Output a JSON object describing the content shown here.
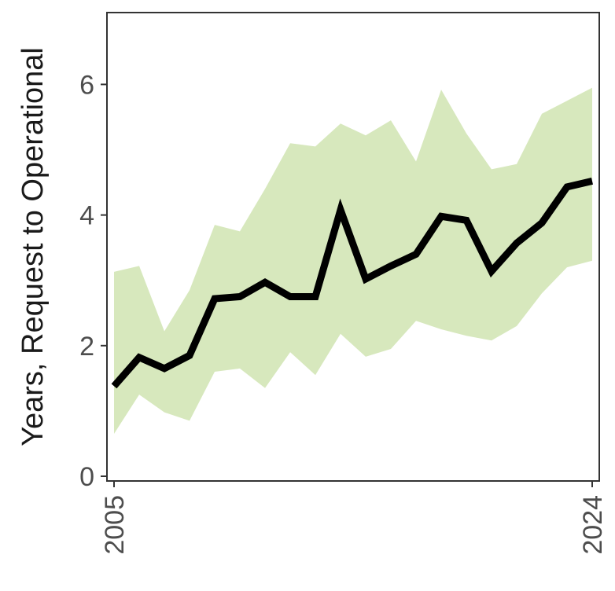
{
  "chart_data": {
    "type": "line",
    "ylabel": "Years, Request to Operational",
    "xlim": [
      2005,
      2024
    ],
    "ylim": [
      0,
      7.1
    ],
    "x_ticks": [
      2005,
      2024
    ],
    "y_ticks": [
      0,
      2,
      4,
      6
    ],
    "grid": false,
    "legend": "none",
    "colors": {
      "line": "#000000",
      "band": "#d7e8bd",
      "frame": "#333333",
      "tick_text": "#4d4d4d"
    },
    "series": [
      {
        "x": [
          2005,
          2006,
          2007,
          2008,
          2009,
          2010,
          2011,
          2012,
          2013,
          2014,
          2015,
          2016,
          2017,
          2018,
          2019,
          2020,
          2021,
          2022,
          2023,
          2024
        ],
        "values": [
          1.38,
          1.82,
          1.65,
          1.85,
          2.72,
          2.75,
          2.97,
          2.75,
          2.75,
          4.08,
          3.02,
          3.22,
          3.4,
          3.98,
          3.92,
          3.14,
          3.57,
          3.88,
          4.43,
          4.52
        ],
        "lower": [
          0.65,
          1.25,
          0.98,
          0.85,
          1.6,
          1.65,
          1.35,
          1.9,
          1.55,
          2.18,
          1.83,
          1.95,
          2.38,
          2.25,
          2.15,
          2.08,
          2.3,
          2.8,
          3.2,
          3.3
        ],
        "upper": [
          3.13,
          3.22,
          2.22,
          2.85,
          3.85,
          3.75,
          4.4,
          5.1,
          5.05,
          5.4,
          5.22,
          5.45,
          4.82,
          5.92,
          5.25,
          4.7,
          4.78,
          5.55,
          5.75,
          5.95
        ]
      }
    ]
  }
}
